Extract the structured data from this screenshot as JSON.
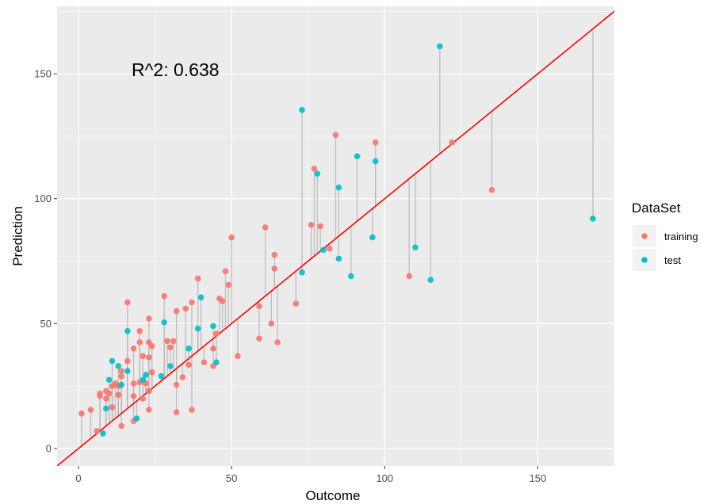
{
  "chart_data": {
    "type": "scatter",
    "xlabel": "Outcome",
    "ylabel": "Prediction",
    "xlim": [
      -7,
      175
    ],
    "ylim": [
      -7,
      177
    ],
    "x_ticks": [
      0,
      50,
      100,
      150
    ],
    "x_tick_labels": [
      "0",
      "50",
      "100",
      "150"
    ],
    "y_ticks": [
      0,
      50,
      100,
      150
    ],
    "y_tick_labels": [
      "0",
      "50",
      "100",
      "150"
    ],
    "grid": true,
    "annotation": "R^2: 0.638",
    "reference_line": {
      "slope": 1,
      "intercept": 0,
      "color": "#ff0000"
    },
    "residual_segments": true,
    "legend": {
      "title": "DataSet",
      "position": "right"
    },
    "series": [
      {
        "name": "training",
        "color": "#f8766d",
        "points": [
          [
            1,
            14
          ],
          [
            4,
            15.5
          ],
          [
            6,
            7
          ],
          [
            7,
            21
          ],
          [
            7,
            22
          ],
          [
            9,
            20
          ],
          [
            9,
            23
          ],
          [
            10,
            22
          ],
          [
            11,
            16.5
          ],
          [
            11,
            25
          ],
          [
            12,
            26
          ],
          [
            13,
            21.5
          ],
          [
            13,
            25
          ],
          [
            14,
            9
          ],
          [
            14,
            29
          ],
          [
            14,
            31
          ],
          [
            16,
            58.5
          ],
          [
            16,
            35
          ],
          [
            18,
            11
          ],
          [
            18,
            21
          ],
          [
            18,
            26
          ],
          [
            18,
            40
          ],
          [
            20,
            47
          ],
          [
            20,
            42.5
          ],
          [
            20,
            26.5
          ],
          [
            21,
            37
          ],
          [
            21,
            20
          ],
          [
            22,
            26
          ],
          [
            23,
            15.5
          ],
          [
            23,
            23
          ],
          [
            23,
            36.5
          ],
          [
            23,
            42.5
          ],
          [
            23,
            52
          ],
          [
            24,
            41
          ],
          [
            24,
            30.5
          ],
          [
            28,
            61
          ],
          [
            29,
            43
          ],
          [
            30,
            40.5
          ],
          [
            31,
            43
          ],
          [
            32,
            14.5
          ],
          [
            32,
            25.5
          ],
          [
            32,
            55
          ],
          [
            34,
            28.5
          ],
          [
            35,
            56
          ],
          [
            36,
            33.5
          ],
          [
            37,
            15.5
          ],
          [
            37,
            58.5
          ],
          [
            39,
            68
          ],
          [
            41,
            34.5
          ],
          [
            44,
            33
          ],
          [
            44,
            40
          ],
          [
            45,
            46
          ],
          [
            46,
            60
          ],
          [
            47,
            59
          ],
          [
            48,
            71
          ],
          [
            49,
            65.5
          ],
          [
            50,
            84.5
          ],
          [
            52,
            37
          ],
          [
            59,
            57
          ],
          [
            59,
            44
          ],
          [
            61,
            88.5
          ],
          [
            63,
            50
          ],
          [
            64,
            77.5
          ],
          [
            64,
            72
          ],
          [
            65,
            42.5
          ],
          [
            71,
            58
          ],
          [
            76,
            89.5
          ],
          [
            77,
            112
          ],
          [
            79,
            89
          ],
          [
            82,
            80
          ],
          [
            84,
            125.5
          ],
          [
            97,
            122.5
          ],
          [
            108,
            69
          ],
          [
            122,
            122.5
          ],
          [
            135,
            103.5
          ]
        ]
      },
      {
        "name": "test",
        "color": "#00bfc4",
        "points": [
          [
            8,
            6
          ],
          [
            9,
            16
          ],
          [
            10,
            27.5
          ],
          [
            11,
            35
          ],
          [
            13,
            33
          ],
          [
            14,
            25.5
          ],
          [
            16,
            47
          ],
          [
            16,
            31
          ],
          [
            19,
            12
          ],
          [
            21,
            27.5
          ],
          [
            22,
            29.5
          ],
          [
            27,
            29
          ],
          [
            28,
            50.5
          ],
          [
            30,
            33
          ],
          [
            36,
            40
          ],
          [
            39,
            48
          ],
          [
            40,
            60.5
          ],
          [
            44,
            49
          ],
          [
            45,
            34.5
          ],
          [
            73,
            135.5
          ],
          [
            73,
            70.5
          ],
          [
            78,
            110
          ],
          [
            80,
            79.5
          ],
          [
            85,
            104.5
          ],
          [
            85,
            76
          ],
          [
            89,
            69
          ],
          [
            91,
            117
          ],
          [
            96,
            84.5
          ],
          [
            97,
            115
          ],
          [
            110,
            80.5
          ],
          [
            115,
            67.5
          ],
          [
            118,
            161
          ],
          [
            168,
            92
          ]
        ]
      }
    ]
  },
  "colors": {
    "panel_bg": "#ebebeb",
    "grid": "#ffffff",
    "segment": "#b3b3b3",
    "legend_key_bg": "#f2f2f2"
  }
}
